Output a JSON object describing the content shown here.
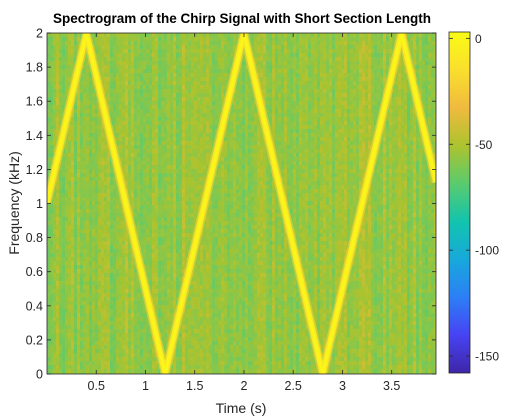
{
  "chart_data": {
    "type": "heatmap",
    "title": "Spectrogram of the Chirp Signal with Short Section Length",
    "xlabel": "Time (s)",
    "ylabel": "Frequency (kHz)",
    "xlim": [
      0,
      3.95
    ],
    "ylim": [
      0,
      2
    ],
    "x_ticks": [
      "0.5",
      "1",
      "1.5",
      "2",
      "2.5",
      "3",
      "3.5"
    ],
    "x_tick_values": [
      0.5,
      1,
      1.5,
      2,
      2.5,
      3,
      3.5
    ],
    "y_ticks": [
      "0",
      "0.2",
      "0.4",
      "0.6",
      "0.8",
      "1",
      "1.2",
      "1.4",
      "1.6",
      "1.8",
      "2"
    ],
    "y_tick_values": [
      0,
      0.2,
      0.4,
      0.6,
      0.8,
      1,
      1.2,
      1.4,
      1.6,
      1.8,
      2
    ],
    "ridge": {
      "x": [
        0,
        0.4,
        1.2,
        2.0,
        2.8,
        3.6,
        3.95
      ],
      "y": [
        1.0,
        2.0,
        0.0,
        2.0,
        0.0,
        2.0,
        1.125
      ]
    },
    "ridge_level_db": 0,
    "background_level_db": -55,
    "colorbar": {
      "range": [
        -158,
        3
      ],
      "ticks": [
        "0",
        "-50",
        "-100",
        "-150"
      ],
      "tick_values": [
        0,
        -50,
        -100,
        -150
      ],
      "colormap": "parula",
      "colors": [
        "#3e26a8",
        "#4743f3",
        "#2c7ff6",
        "#17a9db",
        "#12c4ad",
        "#5acb6e",
        "#acc32e",
        "#f0ba3f",
        "#fadf2d",
        "#f9fb14"
      ]
    },
    "grid": false,
    "legend": "none"
  }
}
